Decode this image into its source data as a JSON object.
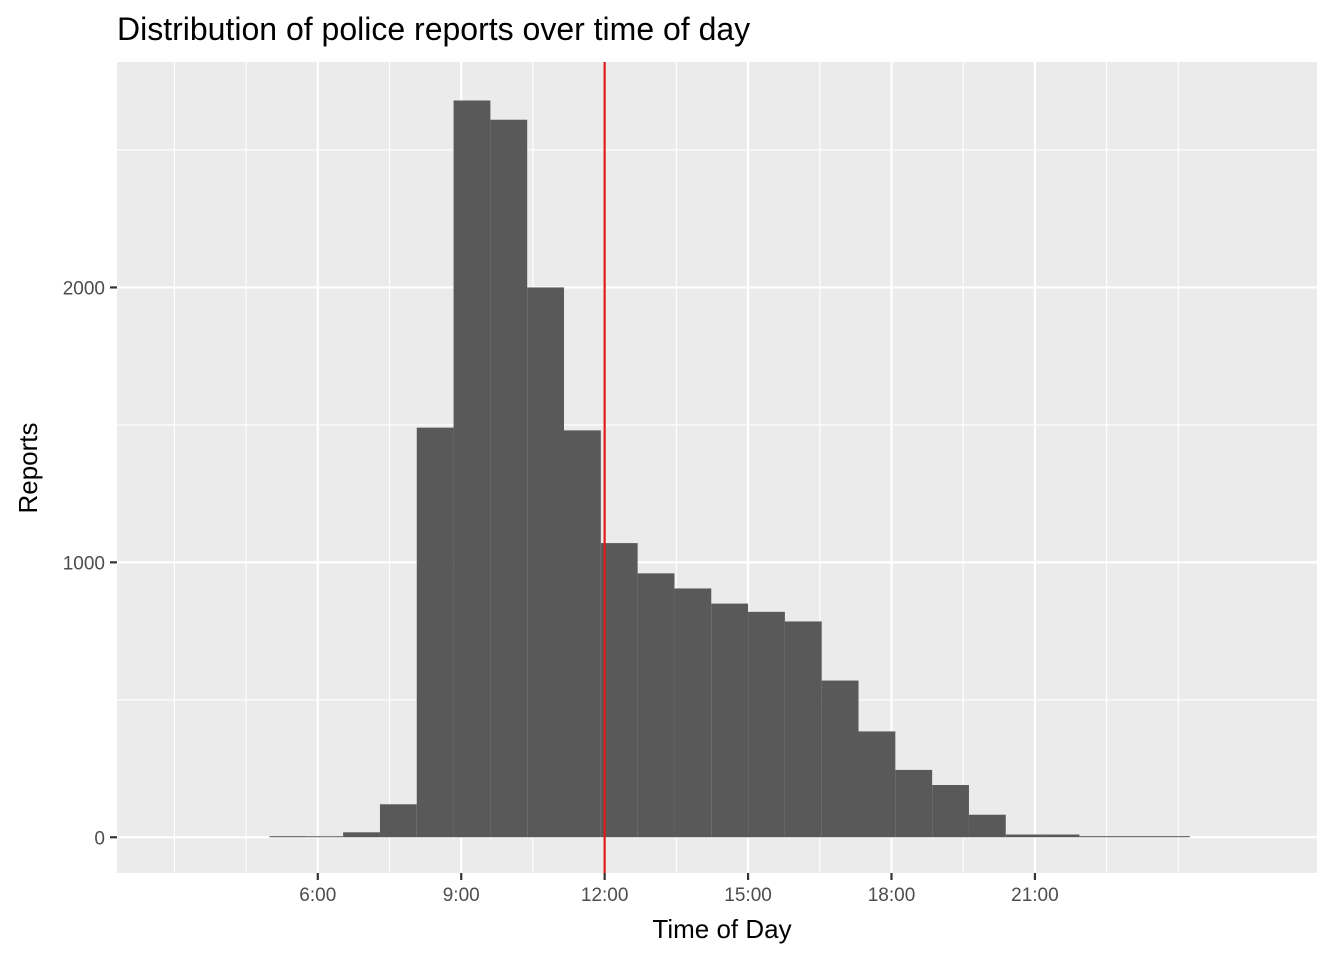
{
  "chart_data": {
    "type": "bar",
    "title": "Distribution of police reports over time of day",
    "xlabel": "Time of Day",
    "ylabel": "Reports",
    "x_unit": "hours",
    "xlim": [
      1.8,
      26.9
    ],
    "ylim": [
      -130,
      2820
    ],
    "bin_width_hours": 0.77,
    "x_ticks": [
      {
        "value": 6,
        "label": "6:00"
      },
      {
        "value": 9,
        "label": "9:00"
      },
      {
        "value": 12,
        "label": "12:00"
      },
      {
        "value": 15,
        "label": "15:00"
      },
      {
        "value": 18,
        "label": "18:00"
      },
      {
        "value": 21,
        "label": "21:00"
      }
    ],
    "x_minor_gridlines": [
      3,
      4.5,
      7.5,
      10.5,
      13.5,
      16.5,
      19.5,
      22.5,
      24
    ],
    "y_ticks": [
      {
        "value": 0,
        "label": "0"
      },
      {
        "value": 1000,
        "label": "1000"
      },
      {
        "value": 2000,
        "label": "2000"
      }
    ],
    "y_minor_gridlines": [
      500,
      1500,
      2500
    ],
    "bins": [
      {
        "x_start": 4.99,
        "count": 4
      },
      {
        "x_start": 5.76,
        "count": 0
      },
      {
        "x_start": 6.53,
        "count": 18
      },
      {
        "x_start": 7.3,
        "count": 120
      },
      {
        "x_start": 8.07,
        "count": 1490
      },
      {
        "x_start": 8.84,
        "count": 2680
      },
      {
        "x_start": 9.61,
        "count": 2610
      },
      {
        "x_start": 10.38,
        "count": 2000
      },
      {
        "x_start": 11.15,
        "count": 1480
      },
      {
        "x_start": 11.92,
        "count": 1070
      },
      {
        "x_start": 12.69,
        "count": 960
      },
      {
        "x_start": 13.46,
        "count": 905
      },
      {
        "x_start": 14.23,
        "count": 850
      },
      {
        "x_start": 15.0,
        "count": 820
      },
      {
        "x_start": 15.77,
        "count": 785
      },
      {
        "x_start": 16.54,
        "count": 570
      },
      {
        "x_start": 17.31,
        "count": 385
      },
      {
        "x_start": 18.08,
        "count": 245
      },
      {
        "x_start": 18.85,
        "count": 190
      },
      {
        "x_start": 19.62,
        "count": 82
      },
      {
        "x_start": 20.39,
        "count": 10
      },
      {
        "x_start": 21.16,
        "count": 10
      },
      {
        "x_start": 21.93,
        "count": 4
      },
      {
        "x_start": 22.7,
        "count": 4
      },
      {
        "x_start": 23.47,
        "count": 4
      }
    ],
    "reference_line": {
      "x": 12,
      "color": "#e31a1c"
    },
    "bar_color": "#595959",
    "panel_background": "#ebebeb",
    "grid_color": "#ffffff",
    "grid": true,
    "legend": "none"
  }
}
